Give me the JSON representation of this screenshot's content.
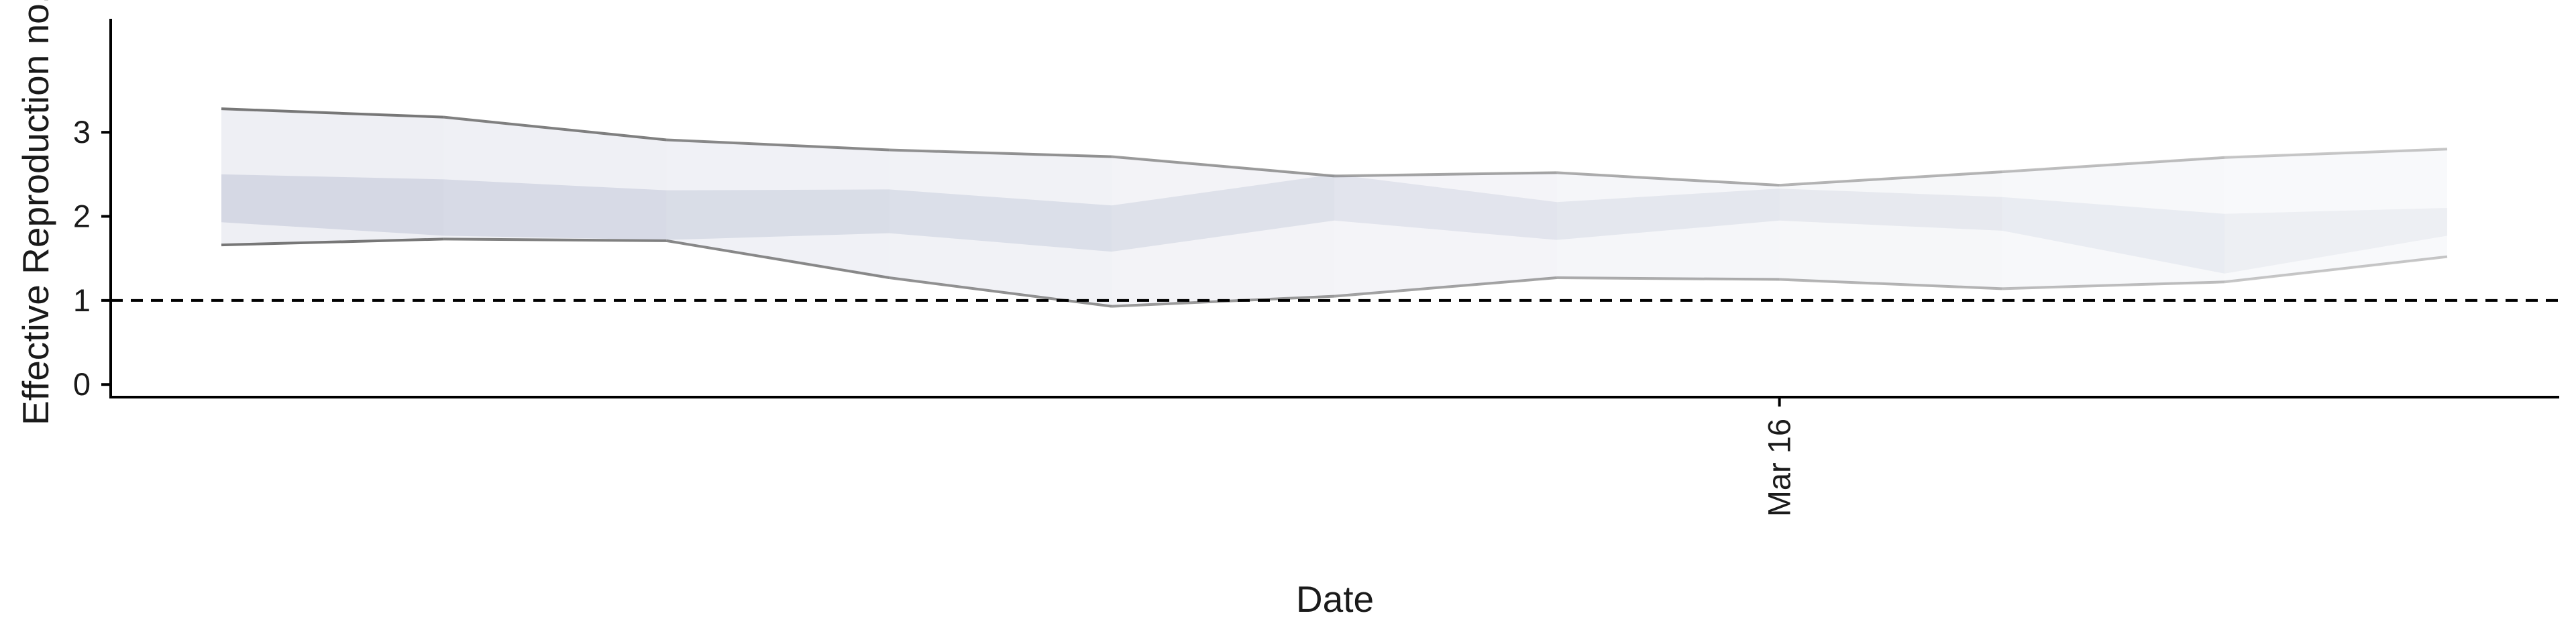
{
  "chart_data": {
    "type": "area",
    "xlabel": "Date",
    "ylabel": "Effective Reproduction no.",
    "x_tick_labels": [
      {
        "label": "Mar 16",
        "x": "2020-03-16"
      }
    ],
    "ylim": [
      -0.15,
      4.35
    ],
    "y_ticks": [
      0,
      1,
      2,
      3
    ],
    "reference_line": {
      "y": 1,
      "style": "dashed"
    },
    "grid": false,
    "legend": "none",
    "dates": [
      "2020-03-09",
      "2020-03-10",
      "2020-03-11",
      "2020-03-12",
      "2020-03-13",
      "2020-03-14",
      "2020-03-15",
      "2020-03-16",
      "2020-03-17",
      "2020-03-18",
      "2020-03-19"
    ],
    "series": [
      {
        "lower_90": [
          1.66,
          1.73,
          1.71,
          1.27,
          0.93,
          1.05,
          1.27,
          1.25,
          1.14,
          1.22,
          1.52
        ],
        "lower_50": [
          1.93,
          1.77,
          1.72,
          1.8,
          1.58,
          1.95,
          1.72,
          1.95,
          1.83,
          1.32,
          1.77
        ],
        "upper_50": [
          2.5,
          2.44,
          2.31,
          2.32,
          2.13,
          2.5,
          2.17,
          2.33,
          2.23,
          2.03,
          2.1
        ],
        "upper_90": [
          3.28,
          3.18,
          2.91,
          2.79,
          2.71,
          2.48,
          2.52,
          2.37,
          2.53,
          2.7,
          2.8
        ]
      }
    ],
    "colors": {
      "band_90": "#c9cddd",
      "band_50": "#aeb6cc",
      "interval_line": "#707070",
      "axis": "#000000"
    }
  }
}
